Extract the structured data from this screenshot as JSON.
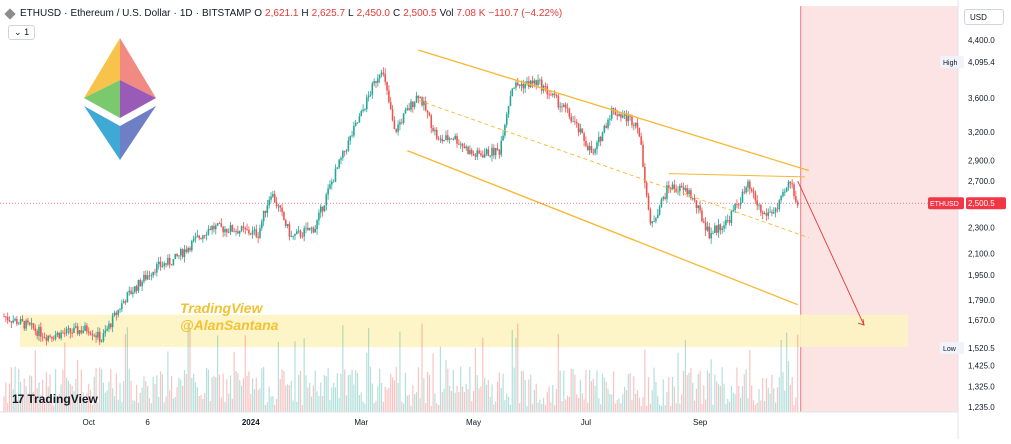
{
  "header": {
    "symbol": "ETHUSD",
    "separator": "·",
    "name": "Ethereum / U.S. Dollar",
    "interval": "1D",
    "exchange": "BITSTAMP",
    "ohlc": {
      "o_label": "O",
      "o": "2,621.1",
      "h_label": "H",
      "h": "2,625.7",
      "l_label": "L",
      "l": "2,450.0",
      "c_label": "C",
      "c": "2,500.5"
    },
    "vol_label": "Vol",
    "vol": "7.08 K",
    "change": "−110.7 (−4.22%)",
    "interval_toggle": "1"
  },
  "currency_button": "USD",
  "watermark": {
    "line1": "TradingView",
    "line2": "@AlanSantana"
  },
  "footer_logo": {
    "mark": "17",
    "text": "TradingView"
  },
  "colors": {
    "up": "#26a69a",
    "down": "#ef5350",
    "channel": "#f7b733",
    "zone": "#fdf3c2",
    "future": "#fce4e4",
    "price_tag": "#f23645",
    "arrow": "#e53935"
  },
  "chart_data": {
    "type": "candlestick",
    "y_axis": {
      "ticks": [
        "4,400.0",
        "4,095.4",
        "3,600.0",
        "3,200.0",
        "2,900.0",
        "2,700.0",
        "2,500.5",
        "2,300.0",
        "2,100.0",
        "1,950.0",
        "1,790.0",
        "1,670.0",
        "1,520.5",
        "1,425.0",
        "1,325.0",
        "1,235.0"
      ],
      "tick_values": [
        4400,
        3600,
        3200,
        2900,
        2700,
        2300,
        2100,
        1950,
        1790,
        1670,
        1425,
        1325,
        1235
      ],
      "scale": "log"
    },
    "x_axis": {
      "ticks": [
        "Oct",
        "6",
        "2024",
        "Mar",
        "May",
        "Jul",
        "Sep"
      ]
    },
    "high_tag": {
      "label": "High",
      "value": "4,095.4"
    },
    "low_tag": {
      "label": "Low",
      "value": "1,520.5"
    },
    "last_price_tag": {
      "label": "ETHUSD",
      "value": "2,500.5"
    },
    "series": [
      {
        "name": "ETHUSD",
        "points": [
          [
            "2023-08-20",
            1690
          ],
          [
            "2023-09-01",
            1640
          ],
          [
            "2023-09-12",
            1580
          ],
          [
            "2023-09-25",
            1600
          ],
          [
            "2023-10-05",
            1620
          ],
          [
            "2023-10-12",
            1560
          ],
          [
            "2023-10-25",
            1800
          ],
          [
            "2023-11-10",
            2000
          ],
          [
            "2023-11-20",
            2050
          ],
          [
            "2023-12-10",
            2300
          ],
          [
            "2023-12-25",
            2280
          ],
          [
            "2024-01-05",
            2250
          ],
          [
            "2024-01-12",
            2600
          ],
          [
            "2024-01-23",
            2220
          ],
          [
            "2024-02-05",
            2300
          ],
          [
            "2024-02-20",
            2950
          ],
          [
            "2024-03-01",
            3400
          ],
          [
            "2024-03-12",
            4000
          ],
          [
            "2024-03-19",
            3200
          ],
          [
            "2024-04-01",
            3650
          ],
          [
            "2024-04-12",
            3100
          ],
          [
            "2024-04-20",
            3150
          ],
          [
            "2024-05-01",
            2950
          ],
          [
            "2024-05-15",
            3000
          ],
          [
            "2024-05-22",
            3750
          ],
          [
            "2024-06-05",
            3800
          ],
          [
            "2024-06-20",
            3450
          ],
          [
            "2024-07-05",
            2950
          ],
          [
            "2024-07-15",
            3450
          ],
          [
            "2024-07-29",
            3300
          ],
          [
            "2024-08-05",
            2300
          ],
          [
            "2024-08-15",
            2650
          ],
          [
            "2024-08-26",
            2600
          ],
          [
            "2024-09-06",
            2250
          ],
          [
            "2024-09-16",
            2350
          ],
          [
            "2024-09-27",
            2650
          ],
          [
            "2024-10-05",
            2400
          ],
          [
            "2024-10-13",
            2450
          ],
          [
            "2024-10-20",
            2700
          ],
          [
            "2024-10-24",
            2500
          ]
        ]
      }
    ],
    "channel_upper": [
      [
        "2024-04-01",
        4250
      ],
      [
        "2024-10-30",
        2800
      ]
    ],
    "channel_lower": [
      [
        "2024-03-26",
        3000
      ],
      [
        "2024-10-24",
        1760
      ]
    ],
    "resistance": [
      [
        "2024-08-15",
        2770
      ],
      [
        "2024-10-28",
        2740
      ]
    ],
    "support_zone": {
      "top": 1700,
      "bottom": 1520
    },
    "projection": [
      [
        "2024-10-24",
        2700
      ],
      [
        "2024-11-29",
        1640
      ]
    ]
  }
}
